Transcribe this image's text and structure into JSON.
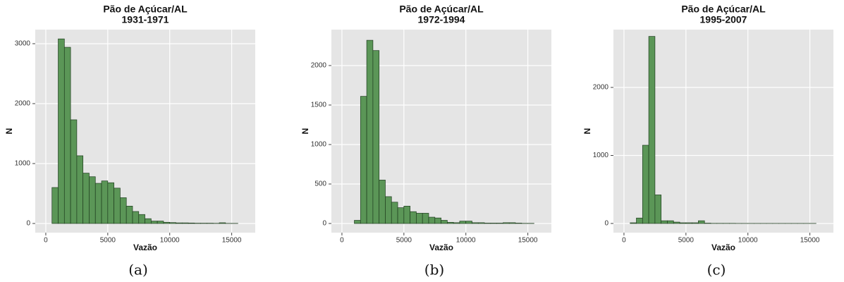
{
  "chart_data": [
    {
      "type": "histogram",
      "title": "Pão de Açúcar/AL",
      "subtitle": "1931-1971",
      "caption": "(a)",
      "xlabel": "Vazão",
      "ylabel": "N",
      "color": "#5b9657",
      "bins": [
        0,
        500,
        1000,
        1500,
        2000,
        2500,
        3000,
        3500,
        4000,
        4500,
        5000,
        5500,
        6000,
        6500,
        7000,
        7500,
        8000,
        8500,
        9000,
        9500,
        10000,
        10500,
        11000,
        11500,
        12000,
        12500,
        13000,
        13500,
        14000,
        14500,
        15000,
        15500
      ],
      "values": [
        0,
        600,
        3080,
        2940,
        1730,
        1130,
        840,
        780,
        670,
        710,
        680,
        590,
        430,
        290,
        200,
        150,
        80,
        40,
        40,
        20,
        15,
        10,
        10,
        8,
        5,
        5,
        5,
        3,
        12,
        2,
        2
      ],
      "xlim": [
        -850,
        16900
      ],
      "ylim": [
        -153,
        3235
      ],
      "xticks": [
        0,
        5000,
        10000,
        15000
      ],
      "yticks": [
        0,
        1000,
        2000,
        3000
      ],
      "grid": true
    },
    {
      "type": "histogram",
      "title": "Pão de Açúcar/AL",
      "subtitle": "1972-1994",
      "caption": "(b)",
      "xlabel": "Vazão",
      "ylabel": "N",
      "color": "#5b9657",
      "bins": [
        0,
        500,
        1000,
        1500,
        2000,
        2500,
        3000,
        3500,
        4000,
        4500,
        5000,
        5500,
        6000,
        6500,
        7000,
        7500,
        8000,
        8500,
        9000,
        9500,
        10000,
        10500,
        11000,
        11500,
        12000,
        12500,
        13000,
        13500,
        14000,
        14500,
        15000,
        15500
      ],
      "values": [
        0,
        0,
        40,
        1610,
        2320,
        2190,
        550,
        340,
        270,
        200,
        220,
        150,
        130,
        130,
        80,
        70,
        40,
        15,
        10,
        30,
        30,
        10,
        10,
        5,
        5,
        5,
        10,
        10,
        5,
        2,
        2
      ],
      "xlim": [
        -850,
        16900
      ],
      "ylim": [
        -116,
        2455
      ],
      "xticks": [
        0,
        5000,
        10000,
        15000
      ],
      "yticks": [
        0,
        500,
        1000,
        1500,
        2000
      ],
      "grid": true
    },
    {
      "type": "histogram",
      "title": "Pão de Açúcar/AL",
      "subtitle": "1995-2007",
      "caption": "(c)",
      "xlabel": "Vazão",
      "ylabel": "N",
      "color": "#5b9657",
      "bins": [
        0,
        500,
        1000,
        1500,
        2000,
        2500,
        3000,
        3500,
        4000,
        4500,
        5000,
        5500,
        6000,
        6500,
        7000,
        7500,
        8000,
        8500,
        9000,
        9500,
        10000,
        10500,
        11000,
        11500,
        12000,
        12500,
        13000,
        13500,
        14000,
        14500,
        15000,
        15500
      ],
      "values": [
        0,
        10,
        80,
        1150,
        2750,
        420,
        40,
        40,
        20,
        10,
        10,
        10,
        40,
        5,
        2,
        2,
        2,
        2,
        1,
        1,
        1,
        1,
        1,
        1,
        1,
        1,
        1,
        1,
        1,
        1,
        1
      ],
      "xlim": [
        -850,
        16900
      ],
      "ylim": [
        -135,
        2850
      ],
      "xticks": [
        0,
        5000,
        10000,
        15000
      ],
      "yticks": [
        0,
        1000,
        2000
      ],
      "grid": true
    }
  ]
}
